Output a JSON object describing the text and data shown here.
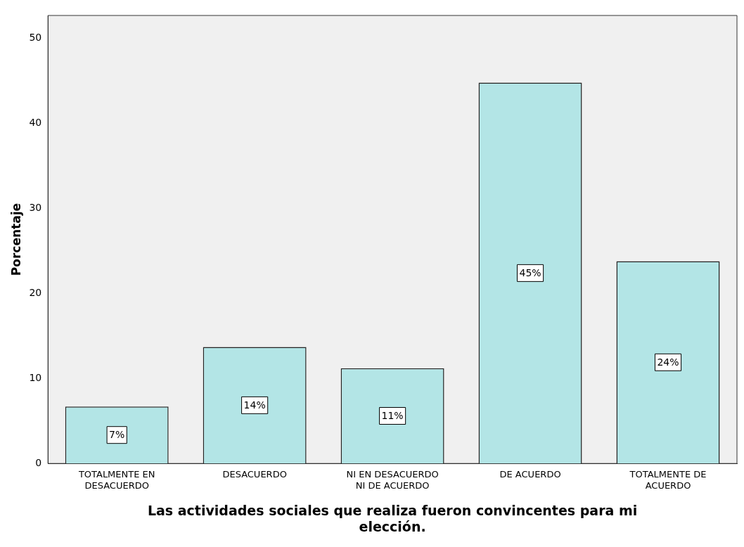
{
  "chart_data": {
    "type": "bar",
    "xlabel": "Las actividades sociales que realiza fueron convincentes para mi elección.",
    "ylabel": "Porcentaje",
    "categories": [
      "TOTALMENTE EN DESACUERDO",
      "DESACUERDO",
      "NI EN DESACUERDO NI DE ACUERDO",
      "DE ACUERDO",
      "TOTALMENTE DE ACUERDO"
    ],
    "values": [
      6.7,
      13.7,
      11.2,
      44.8,
      23.8
    ],
    "value_labels": [
      "7%",
      "14%",
      "11%",
      "45%",
      "24%"
    ],
    "color": "#b3e5e6",
    "ylim": [
      0,
      52.7
    ],
    "yticks": [
      0,
      10,
      20,
      30,
      40,
      50
    ],
    "grid": false,
    "legend": false
  }
}
